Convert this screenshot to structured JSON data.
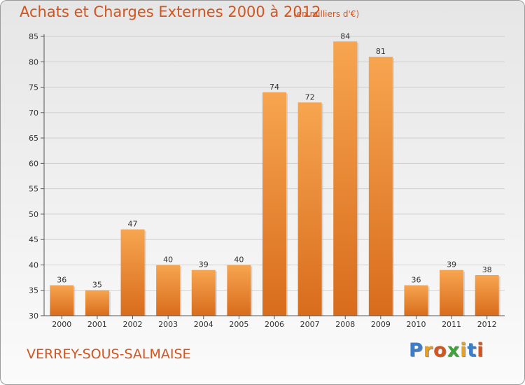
{
  "header": {
    "title": "Achats et Charges Externes 2000 à 2012",
    "subtitle": "(en milliers d'€)"
  },
  "footer": {
    "place": "VERREY-SOUS-SALMAISE"
  },
  "logo": {
    "text": "Proxiti",
    "colors": [
      "#3a7dc9",
      "#e8a021",
      "#d2541e",
      "#3fa33c",
      "#e8a021",
      "#3a7dc9",
      "#d2541e"
    ]
  },
  "colors": {
    "bar_light": "#f7a550",
    "bar_dark": "#d86c1c",
    "grid": "#cfcfcf",
    "text": "#333333",
    "accent": "#d2541e"
  },
  "chart_data": {
    "type": "bar",
    "categories": [
      "2000",
      "2001",
      "2002",
      "2003",
      "2004",
      "2005",
      "2006",
      "2007",
      "2008",
      "2009",
      "2010",
      "2011",
      "2012"
    ],
    "values": [
      36,
      35,
      47,
      40,
      39,
      40,
      74,
      72,
      84,
      81,
      36,
      39,
      38
    ],
    "ylim": [
      30,
      85
    ],
    "yticks": [
      30,
      35,
      40,
      45,
      50,
      55,
      60,
      65,
      70,
      75,
      80,
      85
    ],
    "grid": true
  }
}
